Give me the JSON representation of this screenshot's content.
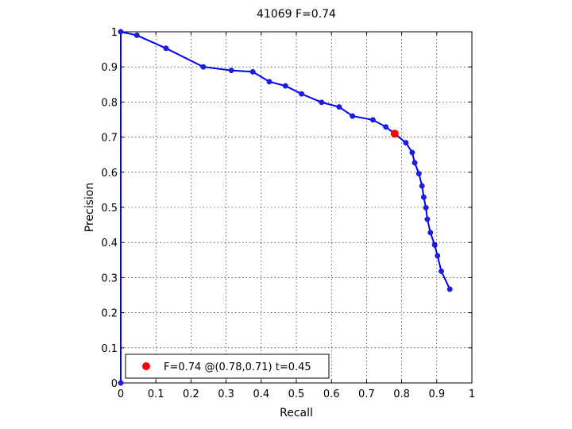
{
  "chart_data": {
    "type": "line",
    "title": "41069 F=0.74",
    "xlabel": "Recall",
    "ylabel": "Precision",
    "xlim": [
      0,
      1
    ],
    "ylim": [
      0,
      1
    ],
    "grid": true,
    "xticks": [
      "0",
      "0.1",
      "0.2",
      "0.3",
      "0.4",
      "0.5",
      "0.6",
      "0.7",
      "0.8",
      "0.9",
      "1"
    ],
    "yticks": [
      "0",
      "0.1",
      "0.2",
      "0.3",
      "0.4",
      "0.5",
      "0.6",
      "0.7",
      "0.8",
      "0.9",
      "1"
    ],
    "colors": {
      "curve": "#0000ff",
      "marker_fill": "#1f1fd6",
      "best": "#ff0000",
      "grid": "#000000"
    },
    "series": [
      {
        "points": [
          [
            0,
            0
          ],
          [
            0,
            1
          ],
          [
            0.046,
            0.99
          ],
          [
            0.129,
            0.953
          ],
          [
            0.235,
            0.9
          ],
          [
            0.315,
            0.89
          ],
          [
            0.376,
            0.886
          ],
          [
            0.423,
            0.858
          ],
          [
            0.469,
            0.846
          ],
          [
            0.515,
            0.823
          ],
          [
            0.572,
            0.799
          ],
          [
            0.622,
            0.786
          ],
          [
            0.66,
            0.76
          ],
          [
            0.718,
            0.749
          ],
          [
            0.755,
            0.729
          ],
          [
            0.78,
            0.71
          ],
          [
            0.812,
            0.684
          ],
          [
            0.83,
            0.656
          ],
          [
            0.837,
            0.627
          ],
          [
            0.849,
            0.596
          ],
          [
            0.858,
            0.561
          ],
          [
            0.863,
            0.529
          ],
          [
            0.869,
            0.499
          ],
          [
            0.873,
            0.466
          ],
          [
            0.882,
            0.428
          ],
          [
            0.894,
            0.393
          ],
          [
            0.902,
            0.362
          ],
          [
            0.913,
            0.318
          ],
          [
            0.937,
            0.267
          ]
        ]
      }
    ],
    "best_point": {
      "recall": 0.78,
      "precision": 0.71
    },
    "legend": {
      "position": "bottom-left",
      "text": "F=0.74 @(0.78,0.71) t=0.45"
    }
  }
}
